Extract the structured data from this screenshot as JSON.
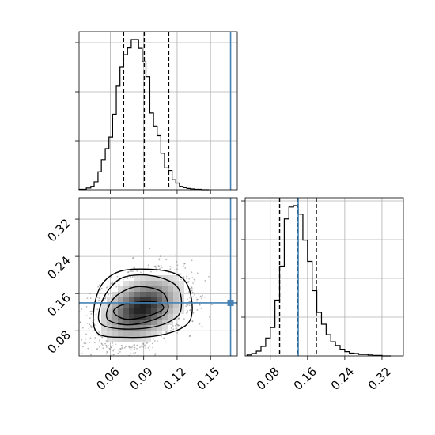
{
  "chart_data": {
    "type": "corner",
    "parameters": [
      {
        "id": "p1",
        "label": "",
        "tick_labels": [
          "0.06",
          "0.09",
          "0.12",
          "0.15"
        ],
        "ticks": [
          0.06,
          0.09,
          0.12,
          0.15
        ]
      },
      {
        "id": "p2",
        "label": "",
        "tick_labels": [
          "0.08",
          "0.16",
          "0.24",
          "0.32"
        ],
        "ticks": [
          0.08,
          0.16,
          0.24,
          0.32
        ]
      }
    ],
    "truth": {
      "p1": 0.168,
      "p2": 0.14
    },
    "colors": {
      "truth": "#4682b4",
      "hist": "#000000",
      "scatter": "#7f7f7f",
      "grid": "#b0b0b0"
    },
    "grid": true,
    "panels": [
      {
        "id": "hist-p1",
        "type": "histogram",
        "xlim": [
          0.032,
          0.174
        ],
        "bin_edges": [
          0.032,
          0.0385,
          0.0425,
          0.0455,
          0.049,
          0.052,
          0.0555,
          0.0588,
          0.0621,
          0.0654,
          0.0687,
          0.072,
          0.0755,
          0.0788,
          0.0821,
          0.0854,
          0.0887,
          0.092,
          0.0955,
          0.0988,
          0.1021,
          0.1054,
          0.1087,
          0.112,
          0.1155,
          0.1188,
          0.1221,
          0.1254,
          0.1287,
          0.132,
          0.1355,
          0.1388,
          0.1421,
          0.1454,
          0.1487
        ],
        "counts": [
          1,
          4,
          8,
          19,
          43,
          72,
          98,
          126,
          180,
          247,
          292,
          322,
          338,
          358,
          358,
          337,
          305,
          270,
          183,
          152,
          129,
          87,
          52,
          46,
          24,
          16,
          8,
          5,
          3,
          2,
          1,
          1,
          0,
          0
        ],
        "quantiles": [
          0.072,
          0.0905,
          0.1125
        ]
      },
      {
        "id": "hist-p2",
        "type": "histogram",
        "xlim": [
          0.026,
          0.366
        ],
        "bin_edges": [
          0.03,
          0.04,
          0.05,
          0.06,
          0.07,
          0.08,
          0.09,
          0.1,
          0.11,
          0.12,
          0.13,
          0.14,
          0.15,
          0.16,
          0.17,
          0.18,
          0.19,
          0.2,
          0.21,
          0.22,
          0.23,
          0.24,
          0.25,
          0.26,
          0.27,
          0.28,
          0.29,
          0.3,
          0.31,
          0.32,
          0.33,
          0.34
        ],
        "counts": [
          2,
          5,
          10,
          20,
          38,
          60,
          118,
          190,
          290,
          315,
          318,
          300,
          245,
          200,
          138,
          92,
          67,
          45,
          30,
          22,
          14,
          9,
          6,
          5,
          3,
          3,
          2,
          1,
          1,
          0,
          0
        ],
        "quantiles": [
          0.1,
          0.139,
          0.179
        ]
      },
      {
        "id": "scatter-p1-p2",
        "type": "2d-density",
        "xlim": [
          0.032,
          0.174
        ],
        "ylim": [
          0.026,
          0.366
        ],
        "center": [
          0.0885,
          0.128
        ],
        "spread": [
          0.019,
          0.037
        ],
        "correlation": 0.35,
        "contours": [
          [
            [
              0.063,
              0.12
            ],
            [
              0.074,
              0.105
            ],
            [
              0.094,
              0.112
            ],
            [
              0.1075,
              0.127
            ],
            [
              0.102,
              0.141
            ],
            [
              0.083,
              0.141
            ],
            [
              0.069,
              0.134
            ]
          ],
          [
            [
              0.058,
              0.104
            ],
            [
              0.073,
              0.093
            ],
            [
              0.091,
              0.098
            ],
            [
              0.108,
              0.114
            ],
            [
              0.112,
              0.134
            ],
            [
              0.106,
              0.164
            ],
            [
              0.085,
              0.175
            ],
            [
              0.067,
              0.158
            ],
            [
              0.058,
              0.129
            ]
          ],
          [
            [
              0.052,
              0.094
            ],
            [
              0.07,
              0.084
            ],
            [
              0.096,
              0.087
            ],
            [
              0.115,
              0.102
            ],
            [
              0.1235,
              0.126
            ],
            [
              0.12,
              0.175
            ],
            [
              0.098,
              0.198
            ],
            [
              0.072,
              0.195
            ],
            [
              0.057,
              0.163
            ],
            [
              0.05,
              0.122
            ]
          ],
          [
            [
              0.049,
              0.074
            ],
            [
              0.074,
              0.066
            ],
            [
              0.104,
              0.07
            ],
            [
              0.127,
              0.09
            ],
            [
              0.1335,
              0.122
            ],
            [
              0.13,
              0.175
            ],
            [
              0.119,
              0.202
            ],
            [
              0.097,
              0.212
            ],
            [
              0.069,
              0.208
            ],
            [
              0.052,
              0.178
            ],
            [
              0.045,
              0.12
            ]
          ]
        ]
      }
    ]
  }
}
